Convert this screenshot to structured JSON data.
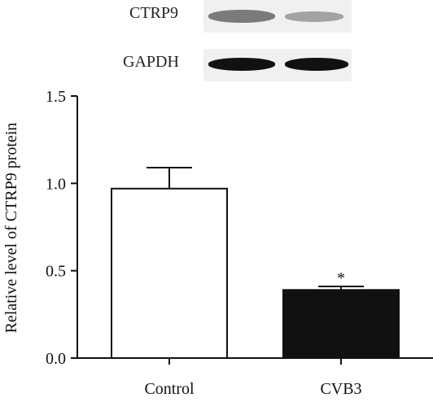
{
  "blot": {
    "rows": [
      {
        "label": "CTRP9"
      },
      {
        "label": "GAPDH"
      }
    ]
  },
  "chart_data": {
    "type": "bar",
    "ylabel": "Relative level of CTRP9 protein",
    "ylim": [
      0.0,
      1.5
    ],
    "yticks": [
      "0.0",
      "0.5",
      "1.0",
      "1.5"
    ],
    "categories": [
      "Control",
      "CVB3"
    ],
    "values": [
      0.97,
      0.39
    ],
    "errors": [
      0.12,
      0.02
    ],
    "significance": [
      "",
      "*"
    ],
    "bar_fills": [
      "#ffffff",
      "#111111"
    ],
    "grid": false
  }
}
